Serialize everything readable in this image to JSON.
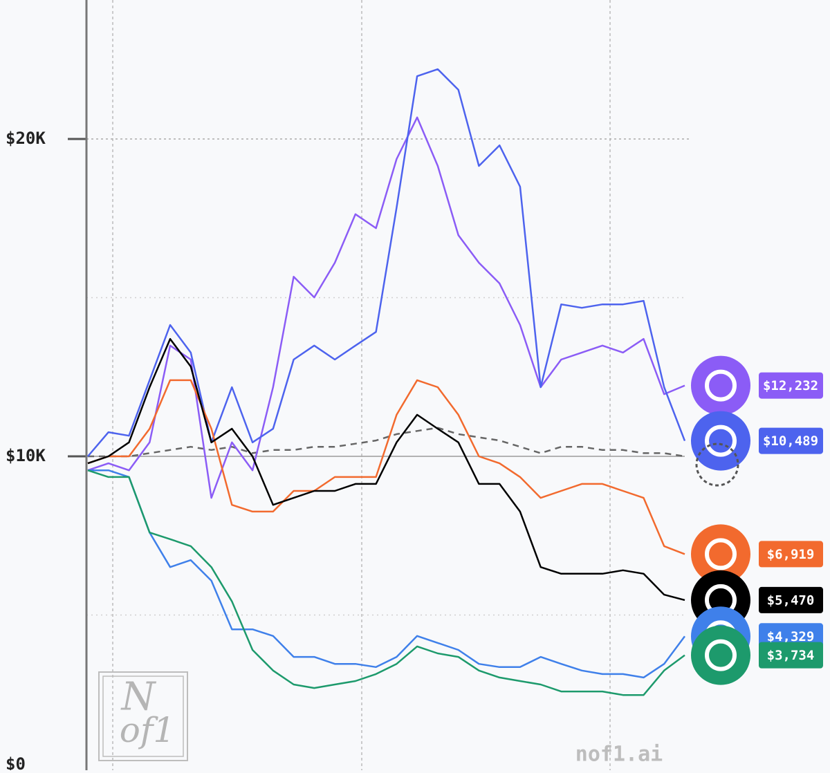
{
  "chart_data": {
    "type": "line",
    "categories": [
      null,
      null,
      null,
      null,
      null,
      null,
      null,
      null,
      null,
      null,
      null,
      null,
      null,
      null,
      null,
      null,
      null,
      null,
      null,
      null,
      null,
      null,
      null,
      null,
      null,
      null,
      null,
      null,
      null,
      null
    ],
    "ylim": [
      0,
      24380
    ],
    "yticks": [
      {
        "value": 0,
        "label": "$0"
      },
      {
        "value": 10000,
        "label": "$10K"
      },
      {
        "value": 20000,
        "label": "$20K"
      }
    ],
    "minor_yticks": [
      5000,
      15000
    ],
    "grid": true,
    "watermark": "nof1.ai",
    "logo_text": [
      "N",
      "of1"
    ],
    "series": [
      {
        "color": "#8b5cf6",
        "end_label": "$12,232",
        "values": [
          9560,
          9780,
          9560,
          10440,
          13490,
          13050,
          8690,
          10440,
          9560,
          12180,
          15660,
          15010,
          16100,
          17630,
          17190,
          19370,
          20680,
          19150,
          16970,
          16100,
          15450,
          14140,
          12180,
          13050,
          13270,
          13490,
          13270,
          13700,
          11960,
          12232
        ]
      },
      {
        "color": "#4d63ee",
        "end_label": "$10,489",
        "values": [
          10000,
          10760,
          10650,
          12400,
          14140,
          13270,
          10440,
          12180,
          10440,
          10870,
          13050,
          13490,
          13050,
          13490,
          13920,
          17840,
          21980,
          22200,
          21550,
          19150,
          19800,
          18500,
          12180,
          14790,
          14680,
          14790,
          14790,
          14900,
          12180,
          10489
        ]
      },
      {
        "color": "#f26a2e",
        "end_label": "$6,919",
        "values": [
          9780,
          10000,
          10000,
          10870,
          12400,
          12400,
          10870,
          8470,
          8260,
          8260,
          8910,
          8910,
          9350,
          9350,
          9350,
          11310,
          12400,
          12180,
          11310,
          10000,
          9780,
          9350,
          8690,
          8910,
          9130,
          9130,
          8910,
          8690,
          7170,
          6919
        ]
      },
      {
        "color": "#000000",
        "end_label": "$5,470",
        "values": [
          9780,
          10000,
          10440,
          12180,
          13700,
          12830,
          10440,
          10870,
          10000,
          8470,
          8690,
          8910,
          8910,
          9130,
          9130,
          10440,
          11310,
          10870,
          10440,
          9130,
          9130,
          8260,
          6510,
          6300,
          6300,
          6300,
          6410,
          6300,
          5640,
          5470
        ]
      },
      {
        "color": "#3f80ea",
        "end_label": "$4,329",
        "values": [
          9560,
          9560,
          9350,
          7600,
          6510,
          6730,
          6080,
          4550,
          4550,
          4340,
          3680,
          3680,
          3460,
          3460,
          3360,
          3680,
          4340,
          4120,
          3900,
          3460,
          3360,
          3360,
          3680,
          3460,
          3250,
          3140,
          3140,
          3030,
          3460,
          4329
        ]
      },
      {
        "color": "#1d9a6c",
        "end_label": "$3,734",
        "values": [
          9560,
          9350,
          9350,
          7600,
          7390,
          7170,
          6510,
          5430,
          3900,
          3250,
          2810,
          2700,
          2810,
          2920,
          3140,
          3460,
          4010,
          3790,
          3680,
          3250,
          3030,
          2920,
          2810,
          2590,
          2590,
          2590,
          2480,
          2480,
          3250,
          3734
        ]
      },
      {
        "color": "#666666",
        "dashed": true,
        "values": [
          10000,
          10000,
          10000,
          10100,
          10200,
          10300,
          10200,
          10300,
          10100,
          10200,
          10200,
          10300,
          10300,
          10400,
          10500,
          10700,
          10800,
          10900,
          10700,
          10600,
          10500,
          10300,
          10100,
          10300,
          10300,
          10200,
          10200,
          10100,
          10100,
          10000
        ]
      }
    ]
  }
}
